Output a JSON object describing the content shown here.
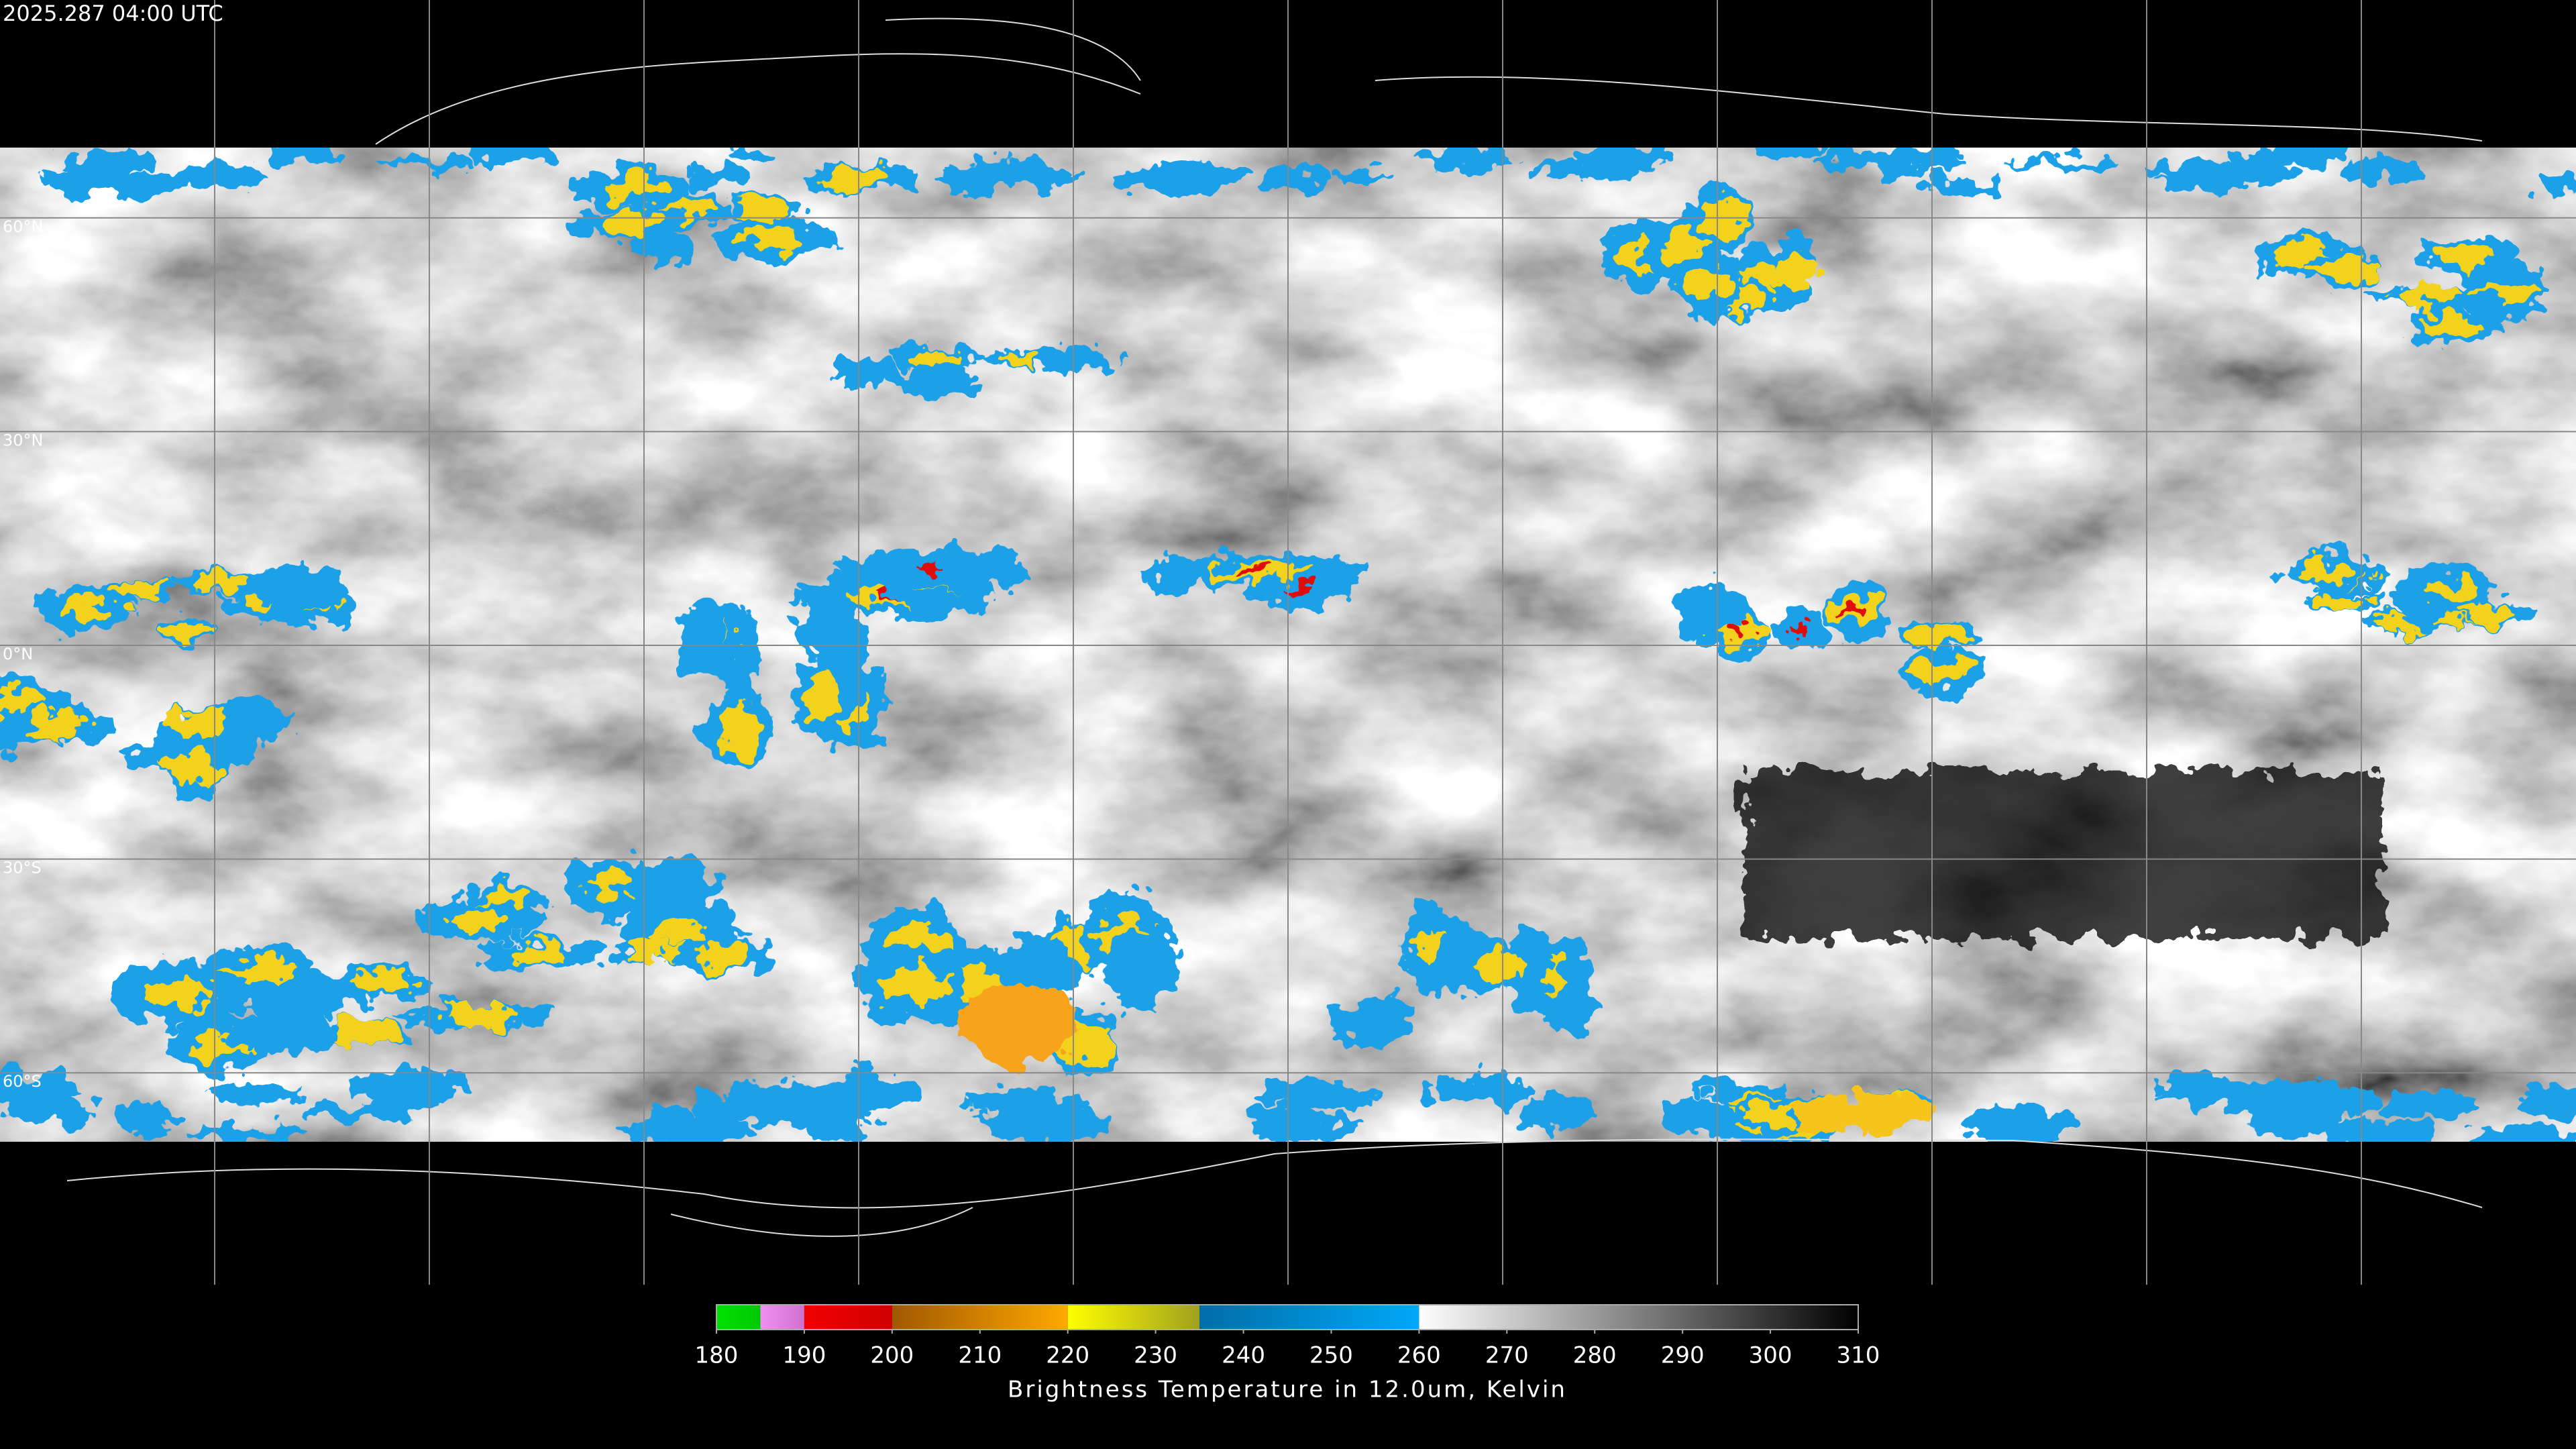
{
  "header": {
    "timestamp": "2025.287 04:00 UTC"
  },
  "map": {
    "latitudes": [
      {
        "value": 60,
        "label": "60°N"
      },
      {
        "value": 30,
        "label": "30°N"
      },
      {
        "value": 0,
        "label": "0°N"
      },
      {
        "value": -30,
        "label": "30°S"
      },
      {
        "value": -60,
        "label": "60°S"
      }
    ]
  },
  "colorbar": {
    "lim": [
      180,
      310
    ],
    "ticks": [
      180,
      190,
      200,
      210,
      220,
      230,
      240,
      250,
      260,
      270,
      280,
      290,
      300,
      310
    ],
    "label": "Brightness Temperature in 12.0um, Kelvin",
    "segments": [
      {
        "from": 180,
        "to": 185,
        "colors": [
          "#00e000",
          "#00c800"
        ]
      },
      {
        "from": 185,
        "to": 190,
        "colors": [
          "#f090f0",
          "#d070d0"
        ]
      },
      {
        "from": 190,
        "to": 200,
        "colors": [
          "#f00000",
          "#d00000"
        ]
      },
      {
        "from": 200,
        "to": 220,
        "colors": [
          "#a05800",
          "#ffa800"
        ]
      },
      {
        "from": 220,
        "to": 235,
        "colors": [
          "#ffff00",
          "#a0a020"
        ]
      },
      {
        "from": 235,
        "to": 260,
        "colors": [
          "#006ea8",
          "#00a8f8"
        ]
      },
      {
        "from": 260,
        "to": 310,
        "colors": [
          "#ffffff",
          "#000000"
        ]
      }
    ]
  }
}
